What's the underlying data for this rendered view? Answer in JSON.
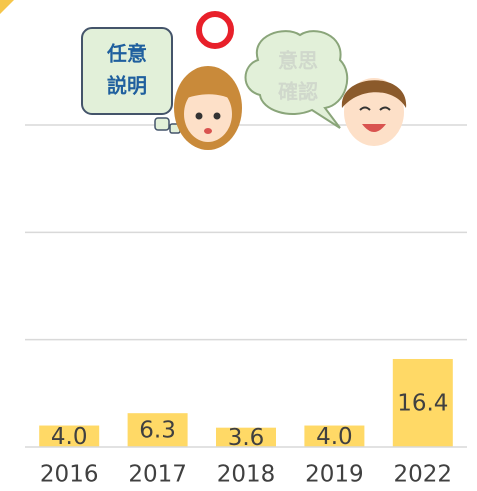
{
  "chart_data": {
    "type": "bar",
    "categories": [
      "2016",
      "2017",
      "2018",
      "2019",
      "2022"
    ],
    "values": [
      4.0,
      6.3,
      3.6,
      4.0,
      16.4
    ],
    "value_labels": [
      "4.0",
      "6.3",
      "3.6",
      "4.0",
      "16.4"
    ],
    "color": "#ffd966",
    "ylim": [
      0,
      60
    ],
    "gridlines": [
      20,
      40,
      60
    ],
    "grid": true
  },
  "illustration": {
    "left_bubble": [
      "任意",
      "説明"
    ],
    "right_bubble": [
      "意思",
      "確認"
    ]
  }
}
